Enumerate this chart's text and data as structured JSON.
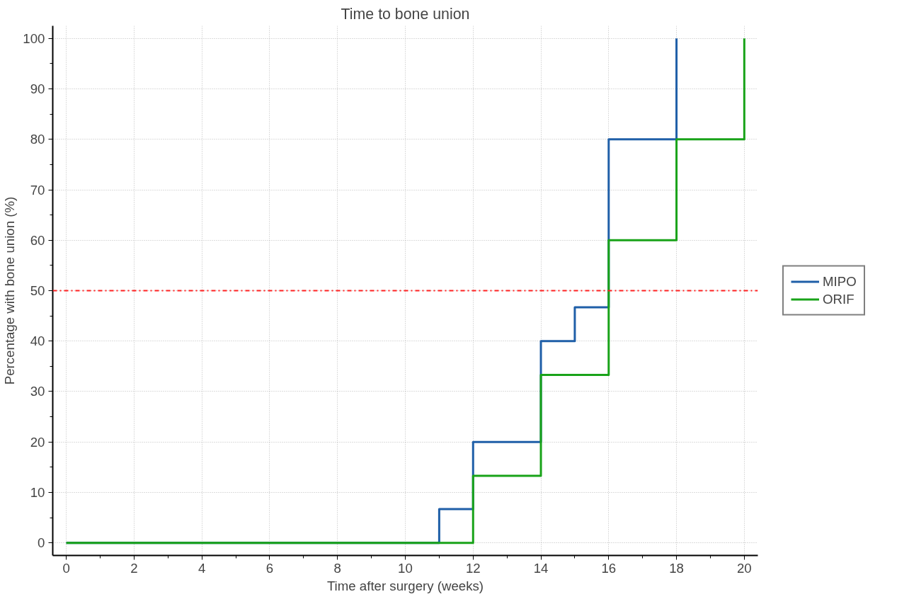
{
  "chart_data": {
    "type": "step",
    "title": "Time to bone union",
    "xlabel": "Time after surgery (weeks)",
    "ylabel": "Percentage with bone union (%)",
    "xlim": [
      -0.4,
      20.4
    ],
    "ylim": [
      -2.5,
      102.5
    ],
    "xticks": [
      0,
      2,
      4,
      6,
      8,
      10,
      12,
      14,
      16,
      18,
      20
    ],
    "yticks": [
      0,
      10,
      20,
      30,
      40,
      50,
      60,
      70,
      80,
      90,
      100
    ],
    "grid": true,
    "legend": "right",
    "line_style": "solid",
    "series": [
      {
        "name": "MIPO",
        "color": "#1f5fa8",
        "x": [
          0,
          11,
          12,
          14,
          15,
          16,
          18
        ],
        "values": [
          0,
          6.7,
          20,
          40,
          46.7,
          80,
          100
        ]
      },
      {
        "name": "ORIF",
        "color": "#19a319",
        "x": [
          0,
          12,
          14,
          16,
          18,
          20
        ],
        "values": [
          0,
          13.3,
          33.3,
          60,
          80,
          100
        ]
      }
    ],
    "ref_lines": [
      {
        "axis": "y",
        "value": 50,
        "color": "#ff2020",
        "line_style": "dashdot"
      }
    ]
  }
}
